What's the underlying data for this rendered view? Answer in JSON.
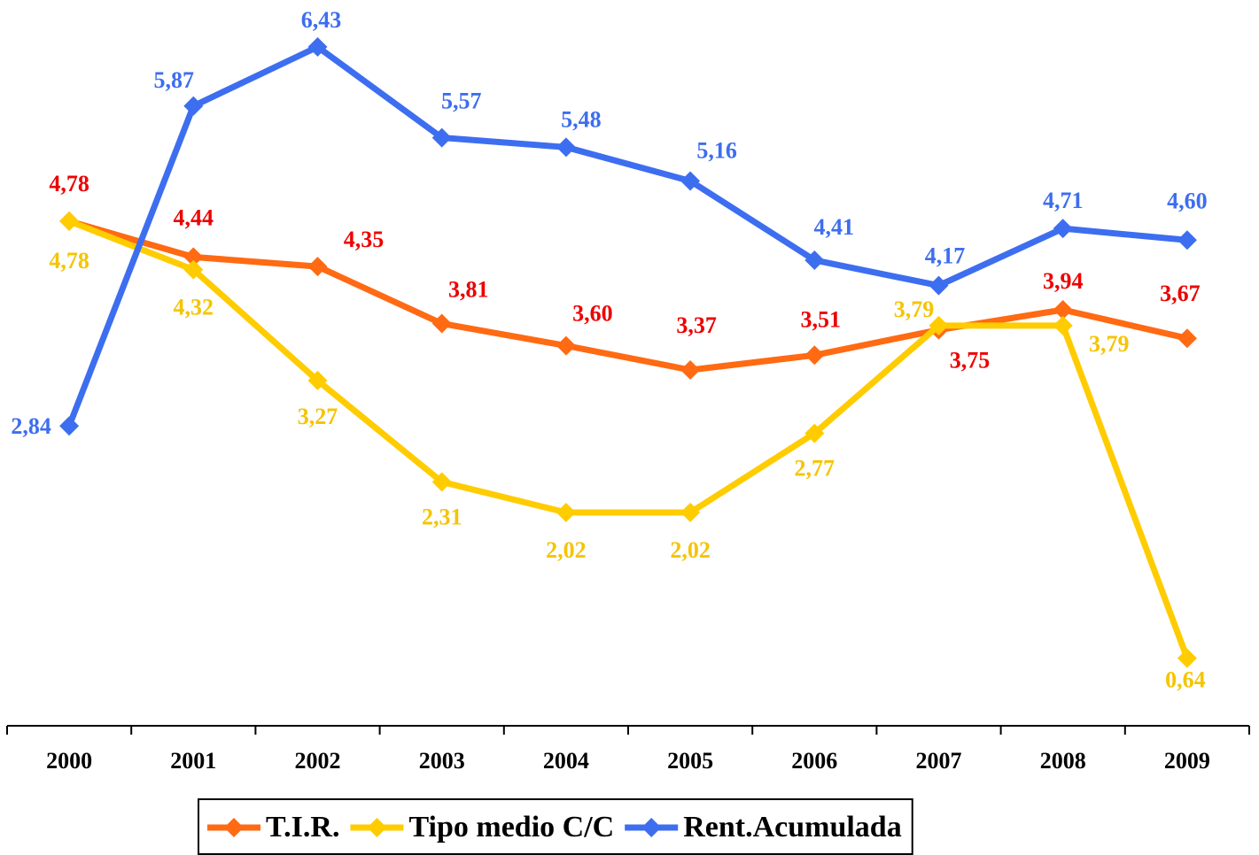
{
  "chart_data": {
    "type": "line",
    "categories": [
      "2000",
      "2001",
      "2002",
      "2003",
      "2004",
      "2005",
      "2006",
      "2007",
      "2008",
      "2009"
    ],
    "ylim": [
      0,
      7
    ],
    "series": [
      {
        "name": "T.I.R.",
        "color": "#ff6a13",
        "label_color": "#ee0000",
        "values": [
          4.78,
          4.44,
          4.35,
          3.81,
          3.6,
          3.37,
          3.51,
          3.75,
          3.94,
          3.67
        ],
        "value_labels": [
          "4,78",
          "4,44",
          "4,35",
          "3,81",
          "3,60",
          "3,37",
          "3,51",
          "3,75",
          "3,94",
          "3,67"
        ]
      },
      {
        "name": "Tipo medio C/C",
        "color": "#ffcc00",
        "label_color": "#f5c400",
        "values": [
          4.78,
          4.32,
          3.27,
          2.31,
          2.02,
          2.02,
          2.77,
          3.79,
          3.79,
          0.64
        ],
        "value_labels": [
          "4,78",
          "4,32",
          "3,27",
          "2,31",
          "2,02",
          "2,02",
          "2,77",
          "3,79",
          "3,79",
          "0,64"
        ]
      },
      {
        "name": "Rent.Acumulada",
        "color": "#3d6ef0",
        "label_color": "#3d6ef0",
        "values": [
          2.84,
          5.87,
          6.43,
          5.57,
          5.48,
          5.16,
          4.41,
          4.17,
          4.71,
          4.6
        ],
        "value_labels": [
          "2,84",
          "5,87",
          "6,43",
          "5,57",
          "5,48",
          "5,16",
          "4,41",
          "4,17",
          "4,71",
          "4,60"
        ]
      }
    ],
    "legend": "bottom"
  }
}
